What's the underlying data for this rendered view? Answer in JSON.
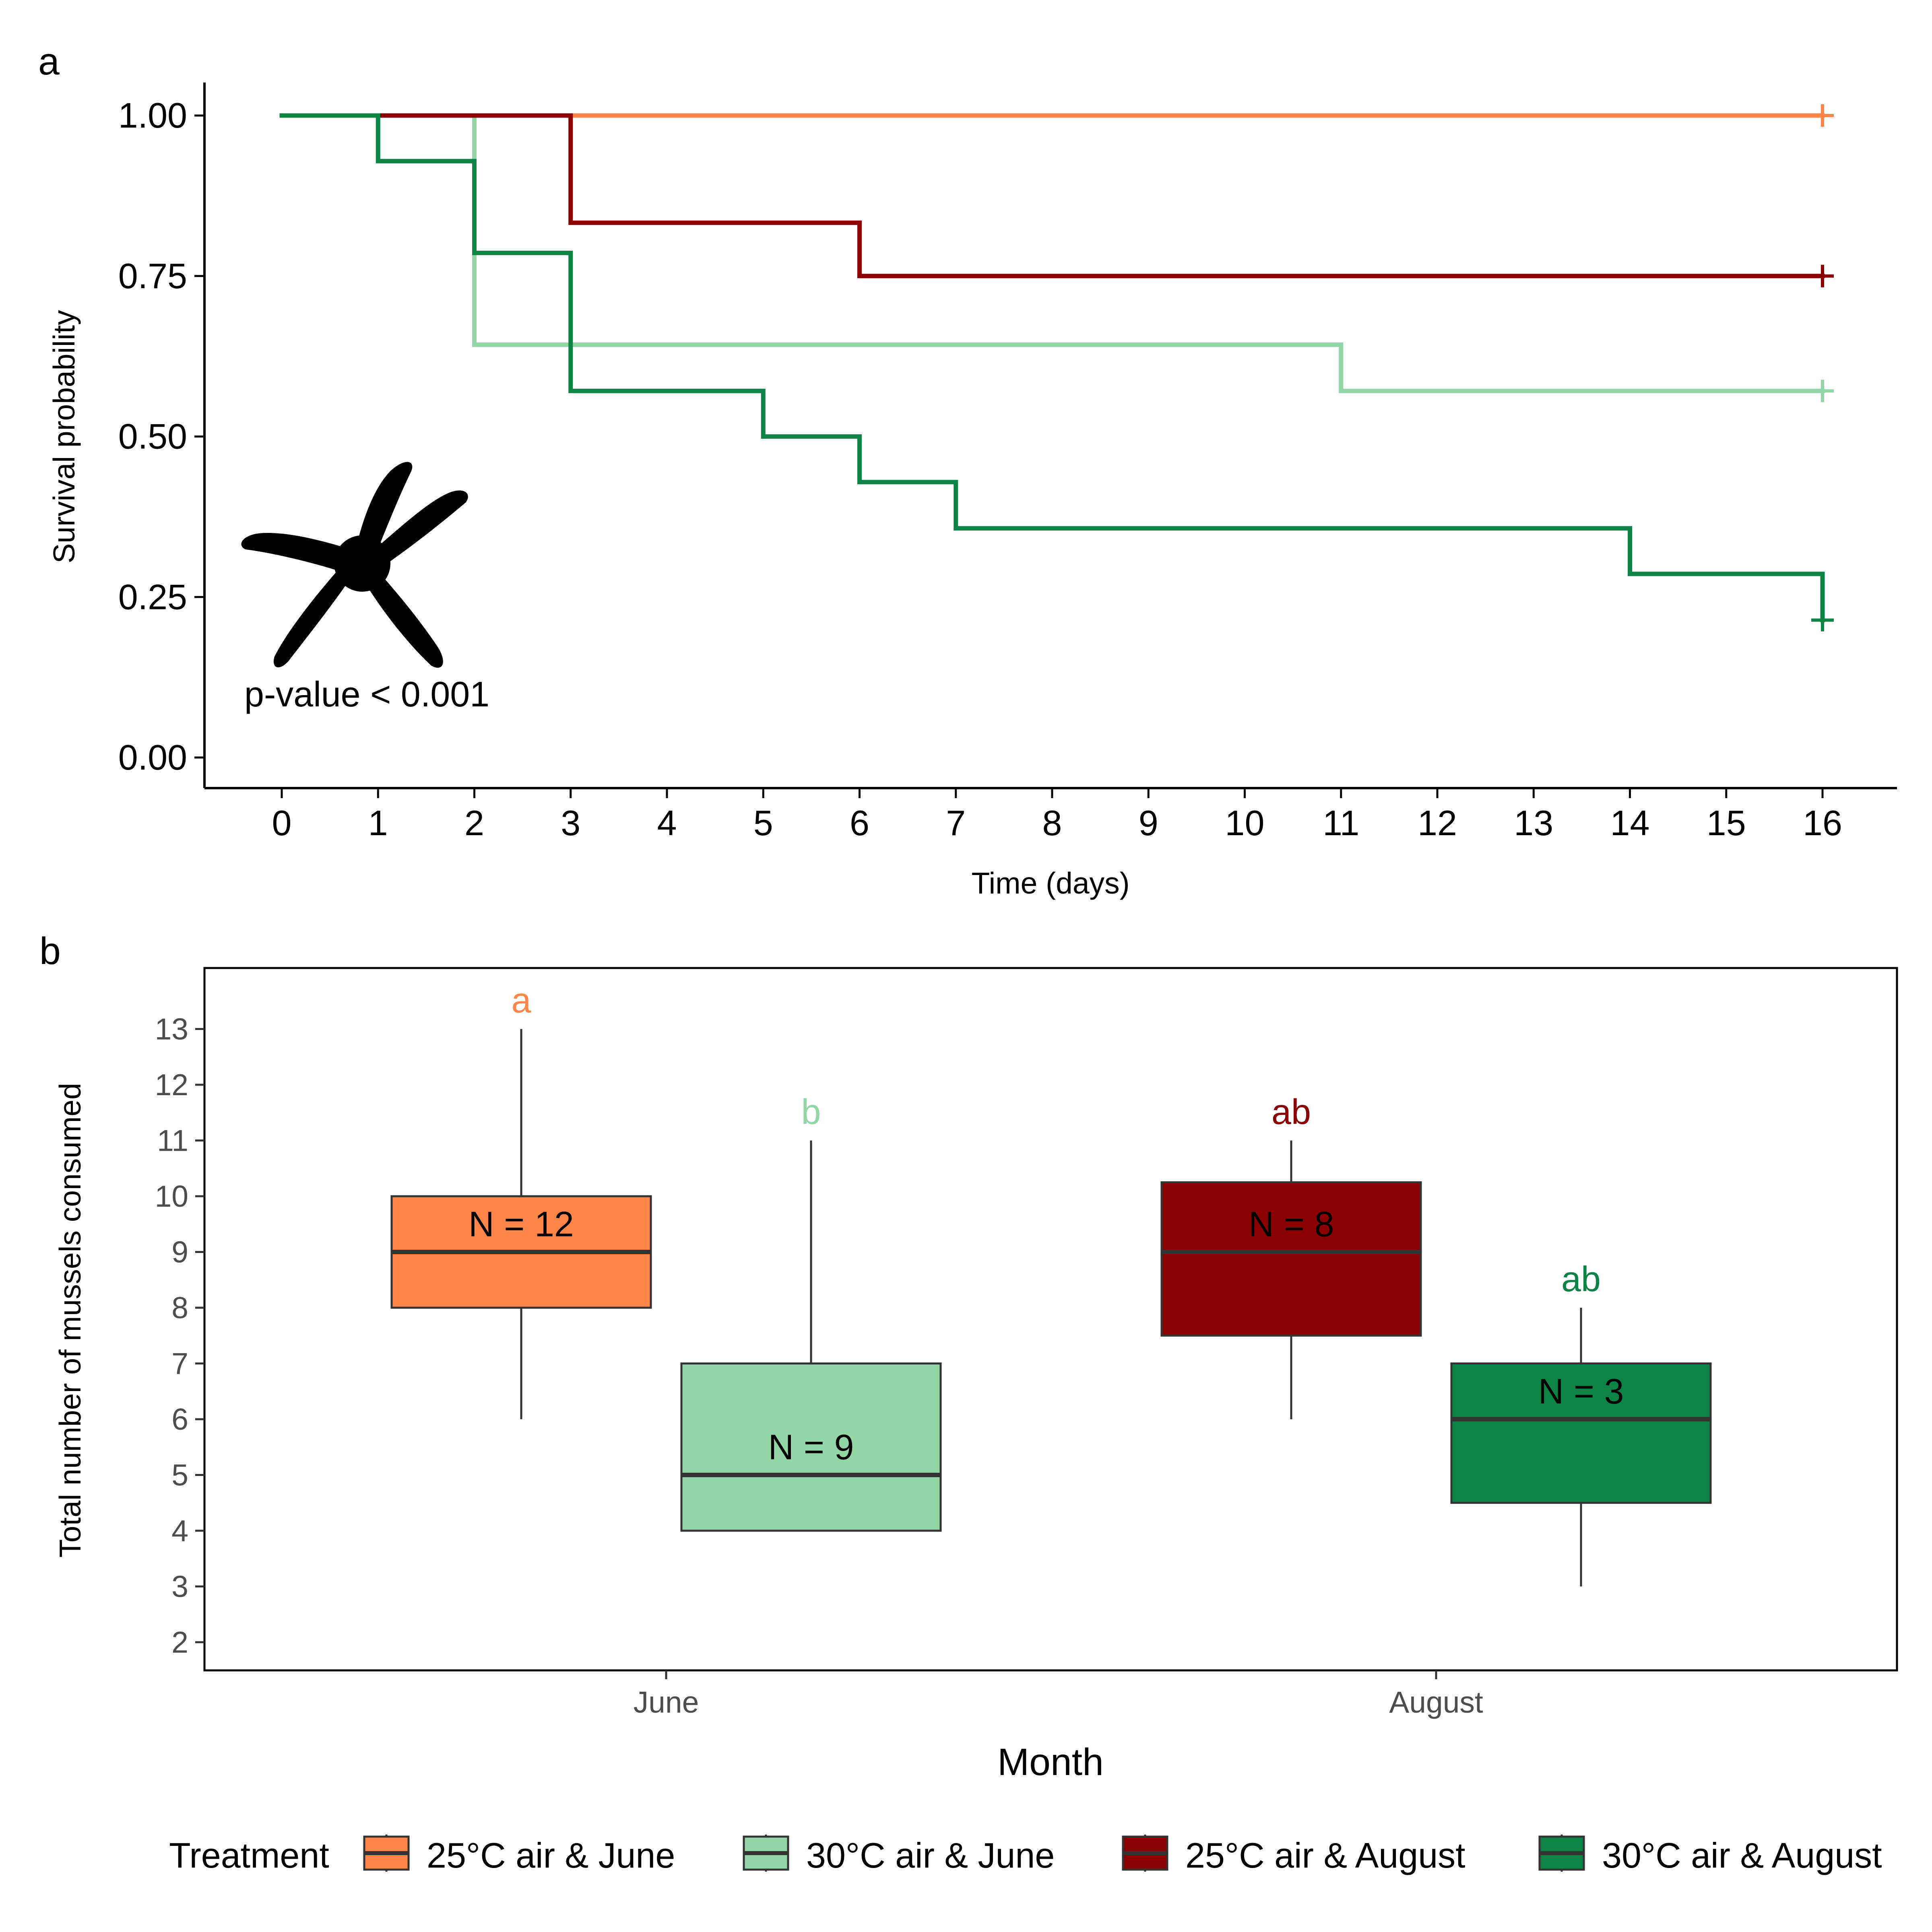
{
  "panels": {
    "a_label": "a",
    "b_label": "b"
  },
  "chart_data": [
    {
      "type": "line",
      "subtype": "step",
      "panel": "a",
      "xlabel": "Time (days)",
      "ylabel": "Survival probability",
      "xlim": [
        0,
        16
      ],
      "ylim": [
        0,
        1
      ],
      "x_ticks": [
        "0",
        "1",
        "2",
        "3",
        "4",
        "5",
        "6",
        "7",
        "8",
        "9",
        "10",
        "11",
        "12",
        "13",
        "14",
        "15",
        "16"
      ],
      "y_ticks": [
        "0.00",
        "0.25",
        "0.50",
        "0.75",
        "1.00"
      ],
      "annotation": "p-value < 0.001",
      "grid": false,
      "series": [
        {
          "name": "25°C air & June",
          "color": "#FF8548",
          "points": [
            [
              0,
              1
            ],
            [
              16,
              1
            ]
          ],
          "censor": [
            16,
            1
          ]
        },
        {
          "name": "30°C air & June",
          "color": "#92D6A5",
          "points": [
            [
              0,
              1
            ],
            [
              2,
              1
            ],
            [
              2,
              0.643
            ],
            [
              11,
              0.643
            ],
            [
              11,
              0.571
            ],
            [
              16,
              0.571
            ]
          ],
          "censor": [
            16,
            0.571
          ]
        },
        {
          "name": "25°C air & August",
          "color": "#8B0000",
          "points": [
            [
              0,
              1
            ],
            [
              3,
              1
            ],
            [
              3,
              0.833
            ],
            [
              6,
              0.833
            ],
            [
              6,
              0.75
            ],
            [
              16,
              0.75
            ]
          ],
          "censor": [
            16,
            0.75
          ]
        },
        {
          "name": "30°C air & August",
          "color": "#0D8446",
          "points": [
            [
              0,
              1
            ],
            [
              1,
              1
            ],
            [
              1,
              0.929
            ],
            [
              2,
              0.929
            ],
            [
              2,
              0.786
            ],
            [
              3,
              0.786
            ],
            [
              3,
              0.571
            ],
            [
              5,
              0.571
            ],
            [
              5,
              0.5
            ],
            [
              6,
              0.5
            ],
            [
              6,
              0.429
            ],
            [
              7,
              0.429
            ],
            [
              7,
              0.357
            ],
            [
              14,
              0.357
            ],
            [
              14,
              0.286
            ],
            [
              16,
              0.286
            ],
            [
              16,
              0.214
            ]
          ],
          "censor": [
            16,
            0.214
          ]
        }
      ]
    },
    {
      "type": "box",
      "panel": "b",
      "xlabel": "Month",
      "ylabel": "Total number of mussels consumed",
      "categories": [
        "June",
        "August"
      ],
      "ylim": [
        1.65,
        14
      ],
      "y_ticks": [
        "2",
        "3",
        "4",
        "5",
        "6",
        "7",
        "8",
        "9",
        "10",
        "11",
        "12",
        "13"
      ],
      "grid": false,
      "boxes": [
        {
          "name": "25°C air & June",
          "category": "June",
          "color": "#FF8548",
          "min": 6,
          "q1": 8,
          "median": 9,
          "q3": 10,
          "max": 13,
          "n_label": "N = 12",
          "n_label_y": 9.5,
          "letter": "a",
          "letter_y": 13.5
        },
        {
          "name": "30°C air & June",
          "category": "June",
          "color": "#92D6A5",
          "min": 4,
          "q1": 4,
          "median": 5,
          "q3": 7,
          "max": 11,
          "n_label": "N = 9",
          "n_label_y": 5.5,
          "letter": "b",
          "letter_y": 11.5
        },
        {
          "name": "25°C air & August",
          "category": "August",
          "color": "#8B0000",
          "min": 6,
          "q1": 7.5,
          "median": 9,
          "q3": 10.25,
          "max": 11,
          "n_label": "N = 8",
          "n_label_y": 9.5,
          "letter": "ab",
          "letter_y": 11.5,
          "letter_color": "#8B0000"
        },
        {
          "name": "30°C air & August",
          "category": "August",
          "color": "#0D8446",
          "min": 3,
          "q1": 4.5,
          "median": 6,
          "q3": 7,
          "max": 8,
          "n_label": "N = 3",
          "n_label_y": 6.5,
          "letter": "ab",
          "letter_y": 8.5
        }
      ]
    }
  ],
  "legend": {
    "title": "Treatment",
    "position": "bottom",
    "items": [
      "25°C air & June",
      "30°C air & June",
      "25°C air & August",
      "30°C air & August"
    ],
    "colors": [
      "#FF8548",
      "#92D6A5",
      "#8B0000",
      "#0D8446"
    ]
  },
  "icons": {
    "silhouette": "sea-star-icon"
  }
}
